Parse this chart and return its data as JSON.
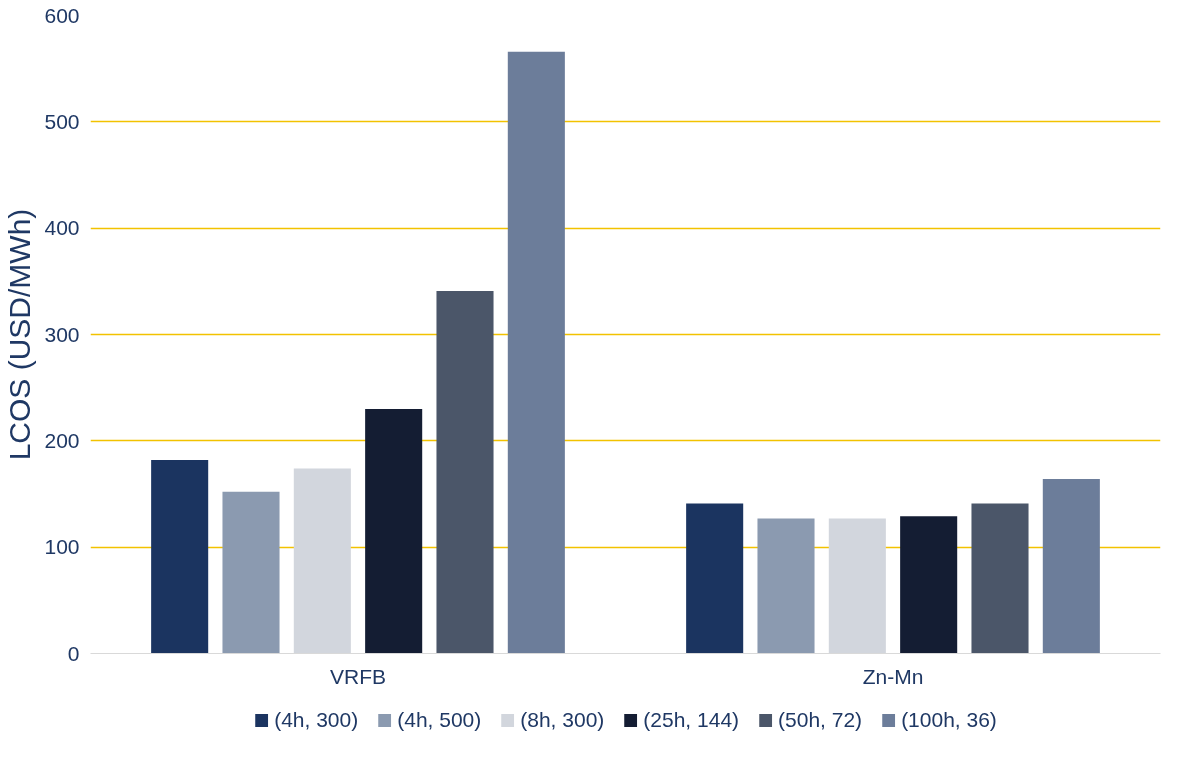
{
  "chart_data": {
    "type": "bar",
    "ylabel": "LCOS (USD/MWh)",
    "categories": [
      "VRFB",
      "Zn-Mn"
    ],
    "ylim": [
      0,
      600
    ],
    "yticks": [
      0,
      100,
      200,
      300,
      400,
      500,
      600
    ],
    "grid": "y",
    "legend": "bottom",
    "series": [
      {
        "name": "(4h, 300)",
        "color": "#1b3460",
        "values": [
          182,
          141
        ]
      },
      {
        "name": "(4h, 500)",
        "color": "#8b9ab0",
        "values": [
          152,
          127
        ]
      },
      {
        "name": "(8h, 300)",
        "color": "#d2d6dd",
        "values": [
          174,
          127
        ]
      },
      {
        "name": "(25h, 144)",
        "color": "#141d33",
        "values": [
          230,
          129
        ]
      },
      {
        "name": "(50h, 72)",
        "color": "#4b5669",
        "values": [
          341,
          141
        ]
      },
      {
        "name": "(100h, 36)",
        "color": "#6c7d9a",
        "values": [
          566,
          164
        ]
      }
    ]
  }
}
